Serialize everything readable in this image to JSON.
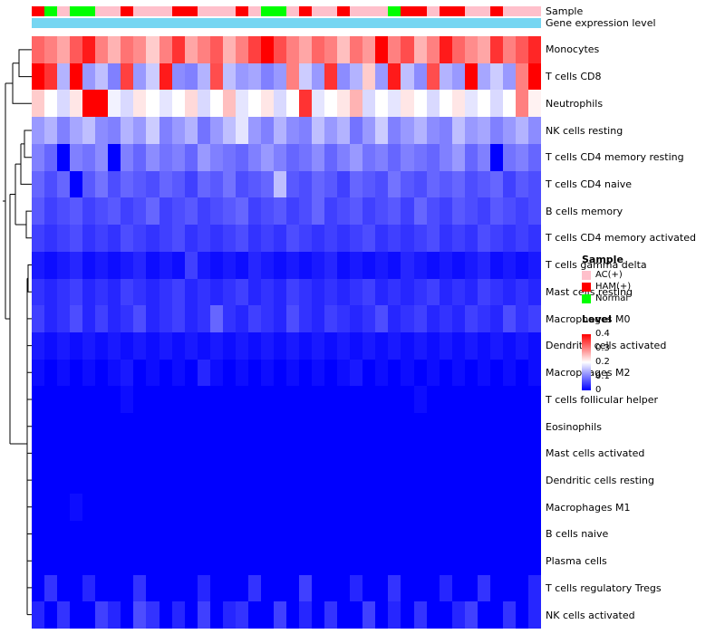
{
  "annotations": {
    "sample_label": "Sample",
    "expression_label": "Gene expression level",
    "expression_color": "#76D6F2",
    "sample_colors": {
      "AC(+)": "#FFC0CB",
      "HAM(+)": "#FF0000",
      "Normal": "#00FF00"
    },
    "sample_values": [
      "HAM(+)",
      "Normal",
      "AC(+)",
      "Normal",
      "Normal",
      "AC(+)",
      "AC(+)",
      "HAM(+)",
      "AC(+)",
      "AC(+)",
      "AC(+)",
      "HAM(+)",
      "HAM(+)",
      "AC(+)",
      "AC(+)",
      "AC(+)",
      "HAM(+)",
      "AC(+)",
      "Normal",
      "Normal",
      "AC(+)",
      "HAM(+)",
      "AC(+)",
      "AC(+)",
      "HAM(+)",
      "AC(+)",
      "AC(+)",
      "AC(+)",
      "Normal",
      "HAM(+)",
      "HAM(+)",
      "AC(+)",
      "HAM(+)",
      "HAM(+)",
      "AC(+)",
      "AC(+)",
      "HAM(+)",
      "AC(+)",
      "AC(+)",
      "AC(+)"
    ]
  },
  "legend": {
    "sample": {
      "title": "Sample",
      "items": [
        {
          "label": "AC(+)",
          "color": "#FFC0CB"
        },
        {
          "label": "HAM(+)",
          "color": "#FF0000"
        },
        {
          "label": "Normal",
          "color": "#00FF00"
        }
      ]
    },
    "level": {
      "title": "Level",
      "ticks": [
        "0.4",
        "0.3",
        "0.2",
        "0.1",
        "0"
      ]
    }
  },
  "chart_data": {
    "type": "heatmap",
    "title": "",
    "xlabel": "",
    "ylabel": "",
    "columns": 40,
    "column_labels_shown": false,
    "row_dendrogram": true,
    "legend_position": "right",
    "color_scale": {
      "min": 0,
      "mid": 0.2,
      "max": 0.4,
      "min_color": "#0000FF",
      "mid_color": "#FFFFFF",
      "max_color": "#FF0000"
    },
    "rows": [
      "Monocytes",
      "T cells CD8",
      "Neutrophils",
      "NK cells resting",
      "T cells CD4 memory resting",
      "T cells CD4 naive",
      "B cells memory",
      "T cells CD4 memory activated",
      "T cells gamma delta",
      "Mast cells resting",
      "Macrophages M0",
      "Dendritic cells activated",
      "Macrophages M2",
      "T cells follicular helper",
      "Eosinophils",
      "Mast cells activated",
      "Dendritic cells resting",
      "Macrophages M1",
      "B cells naive",
      "Plasma cells",
      "T cells regulatory Tregs",
      "NK cells activated"
    ],
    "values": [
      [
        0.32,
        0.3,
        0.27,
        0.33,
        0.38,
        0.3,
        0.26,
        0.31,
        0.29,
        0.24,
        0.3,
        0.36,
        0.27,
        0.3,
        0.33,
        0.26,
        0.3,
        0.35,
        0.4,
        0.34,
        0.3,
        0.27,
        0.32,
        0.3,
        0.25,
        0.31,
        0.28,
        0.42,
        0.3,
        0.34,
        0.26,
        0.3,
        0.38,
        0.32,
        0.29,
        0.27,
        0.36,
        0.3,
        0.33,
        0.37
      ],
      [
        0.42,
        0.36,
        0.14,
        0.4,
        0.12,
        0.15,
        0.1,
        0.35,
        0.12,
        0.16,
        0.38,
        0.11,
        0.1,
        0.14,
        0.34,
        0.15,
        0.12,
        0.13,
        0.1,
        0.12,
        0.3,
        0.16,
        0.12,
        0.36,
        0.11,
        0.14,
        0.24,
        0.12,
        0.38,
        0.15,
        0.11,
        0.34,
        0.14,
        0.12,
        0.4,
        0.13,
        0.16,
        0.12,
        0.3,
        0.42
      ],
      [
        0.24,
        0.2,
        0.17,
        0.22,
        0.44,
        0.4,
        0.19,
        0.17,
        0.22,
        0.2,
        0.18,
        0.2,
        0.23,
        0.17,
        0.2,
        0.25,
        0.18,
        0.2,
        0.22,
        0.17,
        0.2,
        0.36,
        0.18,
        0.2,
        0.22,
        0.26,
        0.17,
        0.2,
        0.18,
        0.22,
        0.2,
        0.17,
        0.2,
        0.22,
        0.18,
        0.2,
        0.17,
        0.2,
        0.3,
        0.21
      ],
      [
        0.12,
        0.14,
        0.1,
        0.13,
        0.15,
        0.11,
        0.1,
        0.14,
        0.12,
        0.16,
        0.1,
        0.12,
        0.14,
        0.09,
        0.12,
        0.15,
        0.18,
        0.12,
        0.1,
        0.14,
        0.11,
        0.1,
        0.15,
        0.12,
        0.14,
        0.09,
        0.12,
        0.16,
        0.1,
        0.12,
        0.14,
        0.11,
        0.1,
        0.15,
        0.12,
        0.13,
        0.1,
        0.12,
        0.14,
        0.11
      ],
      [
        0.1,
        0.08,
        0.0,
        0.1,
        0.09,
        0.11,
        0.0,
        0.1,
        0.08,
        0.11,
        0.09,
        0.1,
        0.08,
        0.12,
        0.1,
        0.09,
        0.08,
        0.1,
        0.12,
        0.1,
        0.08,
        0.09,
        0.11,
        0.08,
        0.1,
        0.12,
        0.09,
        0.1,
        0.08,
        0.1,
        0.09,
        0.08,
        0.1,
        0.12,
        0.08,
        0.1,
        0.0,
        0.09,
        0.1,
        0.08
      ],
      [
        0.08,
        0.06,
        0.08,
        0.0,
        0.07,
        0.09,
        0.06,
        0.08,
        0.07,
        0.06,
        0.08,
        0.07,
        0.05,
        0.08,
        0.07,
        0.09,
        0.06,
        0.07,
        0.08,
        0.15,
        0.07,
        0.06,
        0.08,
        0.07,
        0.05,
        0.08,
        0.07,
        0.06,
        0.09,
        0.07,
        0.06,
        0.08,
        0.07,
        0.08,
        0.06,
        0.07,
        0.08,
        0.05,
        0.07,
        0.06
      ],
      [
        0.07,
        0.05,
        0.06,
        0.07,
        0.05,
        0.06,
        0.07,
        0.05,
        0.06,
        0.08,
        0.05,
        0.06,
        0.07,
        0.05,
        0.06,
        0.07,
        0.08,
        0.05,
        0.06,
        0.07,
        0.05,
        0.06,
        0.08,
        0.05,
        0.06,
        0.07,
        0.05,
        0.06,
        0.07,
        0.05,
        0.08,
        0.06,
        0.05,
        0.07,
        0.06,
        0.05,
        0.07,
        0.06,
        0.05,
        0.06
      ],
      [
        0.05,
        0.04,
        0.05,
        0.06,
        0.04,
        0.05,
        0.04,
        0.06,
        0.05,
        0.04,
        0.05,
        0.06,
        0.04,
        0.05,
        0.04,
        0.05,
        0.06,
        0.04,
        0.05,
        0.04,
        0.06,
        0.05,
        0.04,
        0.05,
        0.04,
        0.05,
        0.06,
        0.04,
        0.05,
        0.04,
        0.05,
        0.06,
        0.04,
        0.05,
        0.04,
        0.06,
        0.05,
        0.04,
        0.05,
        0.04
      ],
      [
        0.02,
        0.01,
        0.02,
        0.03,
        0.01,
        0.02,
        0.01,
        0.02,
        0.03,
        0.01,
        0.02,
        0.01,
        0.05,
        0.02,
        0.01,
        0.02,
        0.01,
        0.03,
        0.02,
        0.01,
        0.02,
        0.01,
        0.02,
        0.03,
        0.01,
        0.02,
        0.01,
        0.02,
        0.01,
        0.03,
        0.02,
        0.01,
        0.02,
        0.01,
        0.02,
        0.03,
        0.01,
        0.02,
        0.01,
        0.02
      ],
      [
        0.04,
        0.03,
        0.04,
        0.05,
        0.03,
        0.04,
        0.03,
        0.05,
        0.04,
        0.03,
        0.04,
        0.05,
        0.03,
        0.04,
        0.03,
        0.04,
        0.05,
        0.03,
        0.04,
        0.03,
        0.05,
        0.04,
        0.03,
        0.04,
        0.03,
        0.04,
        0.05,
        0.03,
        0.04,
        0.03,
        0.04,
        0.05,
        0.03,
        0.04,
        0.03,
        0.05,
        0.04,
        0.03,
        0.04,
        0.03
      ],
      [
        0.05,
        0.03,
        0.04,
        0.06,
        0.03,
        0.05,
        0.03,
        0.04,
        0.06,
        0.03,
        0.04,
        0.05,
        0.03,
        0.04,
        0.08,
        0.04,
        0.03,
        0.05,
        0.04,
        0.03,
        0.06,
        0.04,
        0.03,
        0.05,
        0.04,
        0.03,
        0.04,
        0.06,
        0.03,
        0.04,
        0.05,
        0.03,
        0.04,
        0.03,
        0.05,
        0.04,
        0.03,
        0.06,
        0.04,
        0.05
      ],
      [
        0.02,
        0.01,
        0.02,
        0.01,
        0.02,
        0.01,
        0.02,
        0.01,
        0.02,
        0.01,
        0.02,
        0.01,
        0.02,
        0.01,
        0.02,
        0.01,
        0.02,
        0.01,
        0.02,
        0.01,
        0.02,
        0.01,
        0.02,
        0.01,
        0.02,
        0.01,
        0.02,
        0.01,
        0.02,
        0.01,
        0.02,
        0.01,
        0.02,
        0.01,
        0.02,
        0.01,
        0.02,
        0.01,
        0.02,
        0.01
      ],
      [
        0.01,
        0.0,
        0.01,
        0.0,
        0.01,
        0.0,
        0.01,
        0.02,
        0.0,
        0.01,
        0.0,
        0.01,
        0.0,
        0.03,
        0.01,
        0.0,
        0.01,
        0.0,
        0.01,
        0.0,
        0.01,
        0.0,
        0.01,
        0.0,
        0.01,
        0.02,
        0.0,
        0.01,
        0.0,
        0.01,
        0.0,
        0.01,
        0.0,
        0.01,
        0.0,
        0.01,
        0.0,
        0.01,
        0.0,
        0.01
      ],
      [
        0.0,
        0.0,
        0.0,
        0.0,
        0.0,
        0.0,
        0.0,
        0.01,
        0.0,
        0.0,
        0.0,
        0.0,
        0.0,
        0.0,
        0.0,
        0.0,
        0.0,
        0.0,
        0.0,
        0.0,
        0.0,
        0.0,
        0.0,
        0.0,
        0.0,
        0.0,
        0.0,
        0.0,
        0.0,
        0.0,
        0.01,
        0.0,
        0.0,
        0.0,
        0.0,
        0.0,
        0.0,
        0.0,
        0.0,
        0.0
      ],
      [
        0.0,
        0.0,
        0.0,
        0.0,
        0.0,
        0.0,
        0.0,
        0.0,
        0.0,
        0.0,
        0.0,
        0.0,
        0.0,
        0.0,
        0.0,
        0.0,
        0.0,
        0.0,
        0.0,
        0.0,
        0.0,
        0.0,
        0.0,
        0.0,
        0.0,
        0.0,
        0.0,
        0.0,
        0.0,
        0.0,
        0.0,
        0.0,
        0.0,
        0.0,
        0.0,
        0.0,
        0.0,
        0.0,
        0.0,
        0.0
      ],
      [
        0.0,
        0.0,
        0.0,
        0.0,
        0.0,
        0.0,
        0.0,
        0.0,
        0.0,
        0.0,
        0.0,
        0.0,
        0.0,
        0.0,
        0.0,
        0.0,
        0.0,
        0.0,
        0.0,
        0.0,
        0.0,
        0.0,
        0.0,
        0.0,
        0.0,
        0.0,
        0.0,
        0.0,
        0.0,
        0.0,
        0.0,
        0.0,
        0.0,
        0.0,
        0.0,
        0.0,
        0.0,
        0.0,
        0.0,
        0.0
      ],
      [
        0.0,
        0.0,
        0.0,
        0.0,
        0.0,
        0.0,
        0.0,
        0.0,
        0.0,
        0.0,
        0.0,
        0.0,
        0.0,
        0.0,
        0.0,
        0.0,
        0.0,
        0.0,
        0.0,
        0.0,
        0.0,
        0.0,
        0.0,
        0.0,
        0.0,
        0.0,
        0.0,
        0.0,
        0.0,
        0.0,
        0.0,
        0.0,
        0.0,
        0.0,
        0.0,
        0.0,
        0.0,
        0.0,
        0.0,
        0.0
      ],
      [
        0.0,
        0.0,
        0.0,
        0.01,
        0.0,
        0.0,
        0.0,
        0.0,
        0.0,
        0.0,
        0.0,
        0.0,
        0.0,
        0.0,
        0.0,
        0.0,
        0.0,
        0.0,
        0.0,
        0.0,
        0.0,
        0.0,
        0.0,
        0.0,
        0.0,
        0.0,
        0.0,
        0.0,
        0.0,
        0.0,
        0.0,
        0.0,
        0.0,
        0.0,
        0.0,
        0.0,
        0.0,
        0.0,
        0.0,
        0.0
      ],
      [
        0.0,
        0.0,
        0.0,
        0.0,
        0.0,
        0.0,
        0.0,
        0.0,
        0.0,
        0.0,
        0.0,
        0.0,
        0.0,
        0.0,
        0.0,
        0.0,
        0.0,
        0.0,
        0.0,
        0.0,
        0.0,
        0.0,
        0.0,
        0.0,
        0.0,
        0.0,
        0.0,
        0.0,
        0.0,
        0.0,
        0.0,
        0.0,
        0.0,
        0.0,
        0.0,
        0.0,
        0.0,
        0.0,
        0.0,
        0.0
      ],
      [
        0.0,
        0.0,
        0.0,
        0.0,
        0.0,
        0.0,
        0.0,
        0.0,
        0.0,
        0.0,
        0.0,
        0.0,
        0.0,
        0.0,
        0.0,
        0.0,
        0.0,
        0.0,
        0.0,
        0.0,
        0.0,
        0.0,
        0.0,
        0.0,
        0.0,
        0.0,
        0.0,
        0.0,
        0.0,
        0.0,
        0.0,
        0.0,
        0.0,
        0.0,
        0.0,
        0.0,
        0.0,
        0.0,
        0.0,
        0.0
      ],
      [
        0.0,
        0.04,
        0.0,
        0.0,
        0.03,
        0.0,
        0.0,
        0.0,
        0.04,
        0.0,
        0.0,
        0.0,
        0.0,
        0.03,
        0.0,
        0.0,
        0.0,
        0.04,
        0.0,
        0.0,
        0.0,
        0.05,
        0.0,
        0.0,
        0.0,
        0.03,
        0.0,
        0.0,
        0.04,
        0.0,
        0.0,
        0.0,
        0.03,
        0.0,
        0.0,
        0.04,
        0.0,
        0.0,
        0.0,
        0.03
      ],
      [
        0.03,
        0.0,
        0.04,
        0.0,
        0.0,
        0.05,
        0.03,
        0.0,
        0.06,
        0.04,
        0.0,
        0.03,
        0.0,
        0.05,
        0.0,
        0.03,
        0.04,
        0.0,
        0.0,
        0.05,
        0.0,
        0.03,
        0.0,
        0.04,
        0.0,
        0.0,
        0.05,
        0.0,
        0.03,
        0.0,
        0.04,
        0.0,
        0.0,
        0.03,
        0.05,
        0.0,
        0.0,
        0.04,
        0.0,
        0.03
      ]
    ]
  }
}
